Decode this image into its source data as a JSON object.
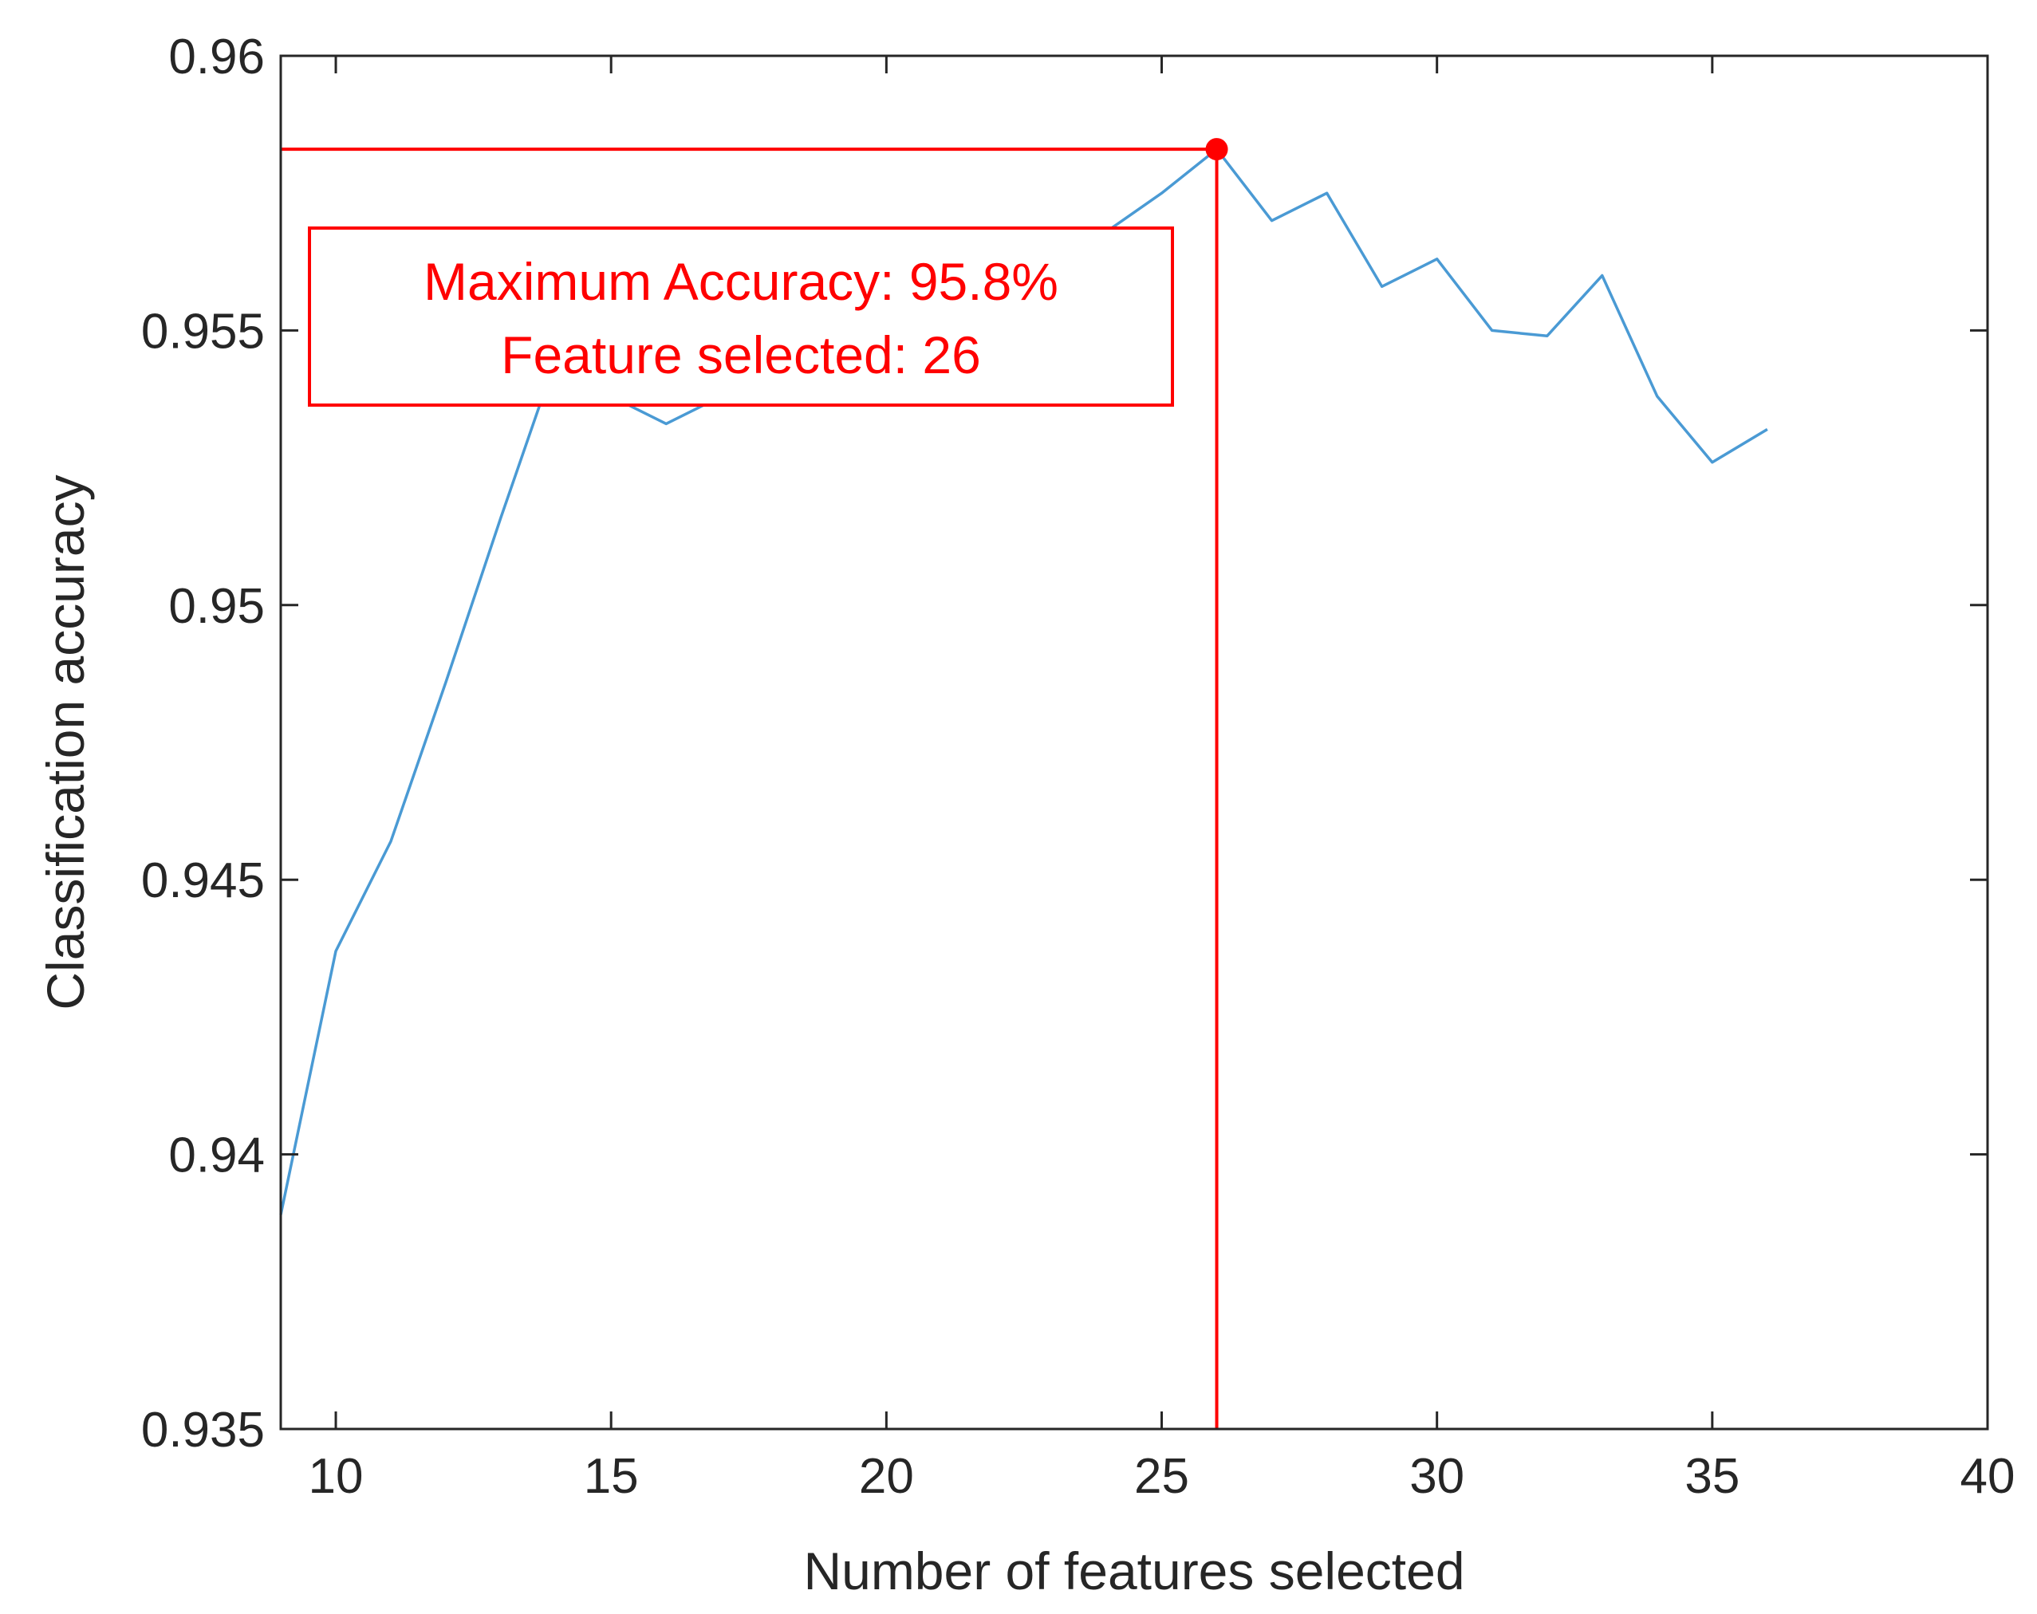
{
  "chart_data": {
    "type": "line",
    "title": "",
    "xlabel": "Number of features selected",
    "ylabel": "Classification accuracy",
    "xlim": [
      9,
      40
    ],
    "ylim": [
      0.935,
      0.96
    ],
    "xticks": [
      10,
      15,
      20,
      25,
      30,
      35,
      40
    ],
    "yticks": [
      0.935,
      0.94,
      0.945,
      0.95,
      0.955,
      0.96
    ],
    "xtick_labels": [
      "10",
      "15",
      "20",
      "25",
      "30",
      "35",
      "40"
    ],
    "ytick_labels": [
      "0.935",
      "0.94",
      "0.945",
      "0.95",
      "0.955",
      "0.96"
    ],
    "grid": false,
    "series": [
      {
        "color": "#4a9ad4",
        "x": [
          9,
          10,
          11,
          12,
          13,
          14,
          15,
          16,
          17,
          18,
          19,
          20,
          21,
          22,
          23,
          24,
          25,
          26,
          27,
          28,
          29,
          30,
          31,
          32,
          33,
          34,
          35,
          36
        ],
        "y": [
          0.9389,
          0.9437,
          0.9457,
          0.9486,
          0.9516,
          0.9545,
          0.9538,
          0.9533,
          0.9538,
          0.9545,
          0.9552,
          0.9556,
          0.9558,
          0.956,
          0.9563,
          0.9568,
          0.9575,
          0.9583,
          0.957,
          0.9575,
          0.9558,
          0.9563,
          0.955,
          0.9549,
          0.956,
          0.9538,
          0.9526,
          0.9532
        ]
      }
    ],
    "annotation": {
      "color": "#ff0000",
      "point": {
        "x": 26,
        "y": 0.9583
      },
      "lines": [
        "Maximum Accuracy: 95.8%",
        "Feature selected: 26"
      ]
    }
  }
}
